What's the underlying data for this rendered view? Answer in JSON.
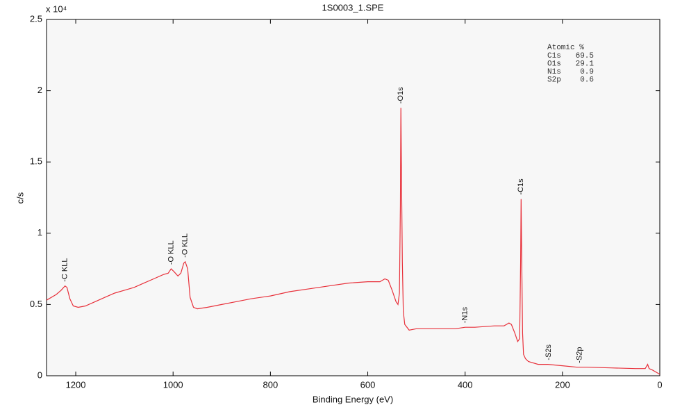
{
  "chart_data": {
    "type": "line",
    "title": "1S0003_1.SPE",
    "x_label": "Binding Energy (eV)",
    "y_label": "c/s",
    "y_multiplier": "x 10⁴",
    "color": "#e8303a",
    "xlim": [
      1260,
      0
    ],
    "xticks": [
      1200,
      1000,
      800,
      600,
      400,
      200,
      0
    ],
    "ylim": [
      0,
      2.5
    ],
    "yticks": [
      0,
      0.5,
      1,
      1.5,
      2,
      2.5
    ],
    "x": [
      1260,
      1240,
      1230,
      1222,
      1218,
      1212,
      1205,
      1195,
      1180,
      1160,
      1140,
      1120,
      1100,
      1080,
      1060,
      1040,
      1020,
      1010,
      1004,
      998,
      990,
      984,
      978,
      975,
      970,
      965,
      958,
      950,
      930,
      900,
      870,
      840,
      800,
      760,
      720,
      680,
      640,
      600,
      575,
      565,
      558,
      550,
      542,
      538,
      535,
      533,
      532,
      531,
      529,
      527,
      524,
      515,
      500,
      460,
      420,
      400,
      380,
      340,
      320,
      310,
      305,
      298,
      292,
      288,
      286,
      285,
      284,
      282,
      280,
      276,
      270,
      250,
      230,
      200,
      170,
      150,
      100,
      50,
      30,
      25,
      22,
      15,
      5,
      0
    ],
    "values": [
      0.53,
      0.57,
      0.6,
      0.63,
      0.62,
      0.54,
      0.49,
      0.48,
      0.49,
      0.52,
      0.55,
      0.58,
      0.6,
      0.62,
      0.65,
      0.68,
      0.71,
      0.72,
      0.75,
      0.73,
      0.7,
      0.72,
      0.79,
      0.8,
      0.75,
      0.55,
      0.48,
      0.47,
      0.48,
      0.5,
      0.52,
      0.54,
      0.56,
      0.59,
      0.61,
      0.63,
      0.65,
      0.66,
      0.66,
      0.68,
      0.67,
      0.6,
      0.52,
      0.5,
      0.58,
      1.2,
      1.88,
      1.5,
      0.8,
      0.45,
      0.36,
      0.32,
      0.33,
      0.33,
      0.33,
      0.34,
      0.34,
      0.35,
      0.35,
      0.37,
      0.36,
      0.3,
      0.24,
      0.26,
      0.8,
      1.24,
      0.9,
      0.3,
      0.15,
      0.12,
      0.1,
      0.08,
      0.08,
      0.07,
      0.06,
      0.06,
      0.055,
      0.05,
      0.05,
      0.08,
      0.05,
      0.04,
      0.02,
      0.01
    ],
    "annotations": [
      {
        "text": "-C KLL",
        "x": 1222
      },
      {
        "text": "-O KLL",
        "x": 1004
      },
      {
        "text": "-O KLL",
        "x": 975
      },
      {
        "text": "-O1s",
        "x": 532
      },
      {
        "text": "-N1s",
        "x": 400
      },
      {
        "text": "-C1s",
        "x": 285
      },
      {
        "text": "-S2s",
        "x": 228
      },
      {
        "text": "-S2p",
        "x": 165
      }
    ],
    "composition": {
      "title": "Atomic %",
      "rows": [
        {
          "element": "C1s",
          "percent": 69.5
        },
        {
          "element": "O1s",
          "percent": 29.1
        },
        {
          "element": "N1s",
          "percent": 0.9
        },
        {
          "element": "S2p",
          "percent": 0.6
        }
      ]
    }
  }
}
